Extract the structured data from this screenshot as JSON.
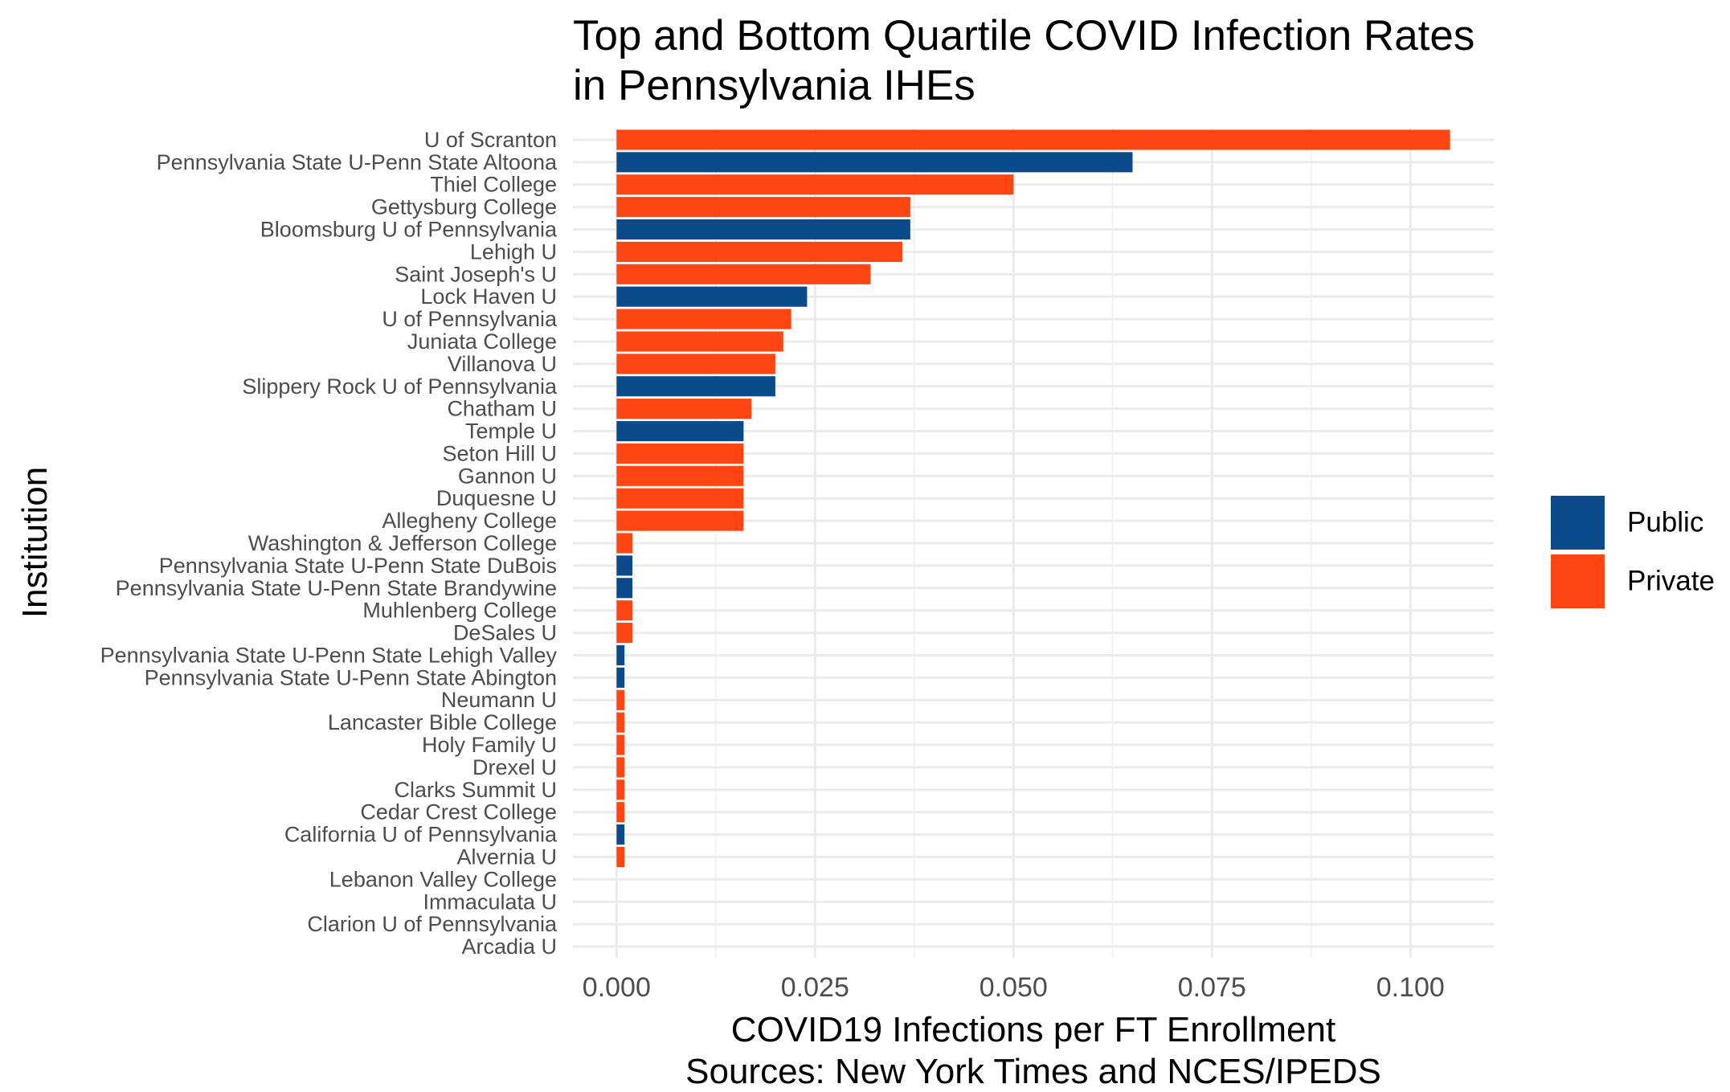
{
  "chart_data": {
    "type": "bar",
    "orientation": "horizontal",
    "title": [
      "Top and Bottom Quartile COVID Infection Rates",
      "in Pennsylvania IHEs"
    ],
    "xlabel": [
      "COVID19 Infections per FT Enrollment",
      "Sources: New York Times and NCES/IPEDS"
    ],
    "ylabel": "Institution",
    "xlim": [
      -0.0055,
      0.1105
    ],
    "xticks": [
      0.0,
      0.025,
      0.05,
      0.075,
      0.1
    ],
    "xtick_labels": [
      "0.000",
      "0.025",
      "0.050",
      "0.075",
      "0.100"
    ],
    "grid": true,
    "legend_position": "right",
    "legend": [
      {
        "name": "Public",
        "color": "#0b4a8b"
      },
      {
        "name": "Private",
        "color": "#ff4512"
      }
    ],
    "categories": [
      "U of Scranton",
      "Pennsylvania State U-Penn State Altoona",
      "Thiel College",
      "Gettysburg College",
      "Bloomsburg U of Pennsylvania",
      "Lehigh U",
      "Saint Joseph's U",
      "Lock Haven U",
      "U of Pennsylvania",
      "Juniata College",
      "Villanova U",
      "Slippery Rock U of Pennsylvania",
      "Chatham U",
      "Temple U",
      "Seton Hill U",
      "Gannon U",
      "Duquesne U",
      "Allegheny College",
      "Washington & Jefferson College",
      "Pennsylvania State U-Penn State DuBois",
      "Pennsylvania State U-Penn State Brandywine",
      "Muhlenberg College",
      "DeSales U",
      "Pennsylvania State U-Penn State Lehigh Valley",
      "Pennsylvania State U-Penn State Abington",
      "Neumann U",
      "Lancaster Bible College",
      "Holy Family U",
      "Drexel U",
      "Clarks Summit U",
      "Cedar Crest College",
      "California U of Pennsylvania",
      "Alvernia U",
      "Lebanon Valley College",
      "Immaculata U",
      "Clarion U of Pennsylvania",
      "Arcadia U"
    ],
    "values": [
      0.105,
      0.065,
      0.05,
      0.037,
      0.037,
      0.036,
      0.032,
      0.024,
      0.022,
      0.021,
      0.02,
      0.02,
      0.017,
      0.016,
      0.016,
      0.016,
      0.016,
      0.016,
      0.002,
      0.002,
      0.002,
      0.002,
      0.002,
      0.001,
      0.001,
      0.001,
      0.001,
      0.001,
      0.001,
      0.001,
      0.001,
      0.001,
      0.001,
      0,
      0,
      0,
      0
    ],
    "control": [
      "Private",
      "Public",
      "Private",
      "Private",
      "Public",
      "Private",
      "Private",
      "Public",
      "Private",
      "Private",
      "Private",
      "Public",
      "Private",
      "Public",
      "Private",
      "Private",
      "Private",
      "Private",
      "Private",
      "Public",
      "Public",
      "Private",
      "Private",
      "Public",
      "Public",
      "Private",
      "Private",
      "Private",
      "Private",
      "Private",
      "Private",
      "Public",
      "Private",
      "Private",
      "Private",
      "Public",
      "Private"
    ]
  }
}
